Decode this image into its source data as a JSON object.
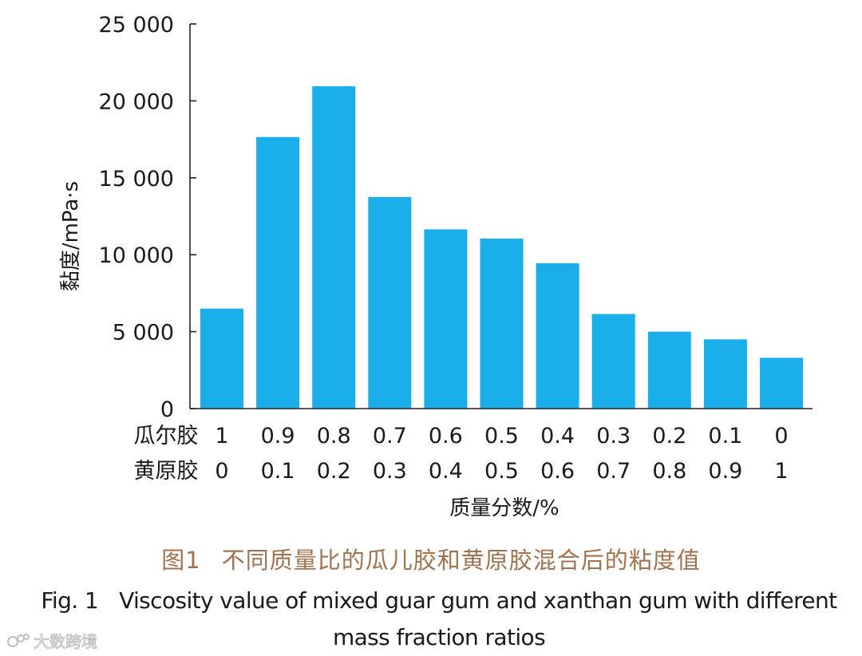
{
  "chart_data": {
    "type": "bar",
    "title": "",
    "ylabel": "黏度/mPa·s",
    "xlabel": "质量分数/%",
    "ylim": [
      0,
      25000
    ],
    "yticks": [
      0,
      5000,
      10000,
      15000,
      20000,
      25000
    ],
    "ytick_labels": [
      "0",
      "5 000",
      "10 000",
      "15 000",
      "20 000",
      "25 000"
    ],
    "row_labels": [
      "瓜尔胶",
      "黄原胶"
    ],
    "guar_gum_fractions": [
      "1",
      "0.9",
      "0.8",
      "0.7",
      "0.6",
      "0.5",
      "0.4",
      "0.3",
      "0.2",
      "0.1",
      "0"
    ],
    "xanthan_gum_fractions": [
      "0",
      "0.1",
      "0.2",
      "0.3",
      "0.4",
      "0.5",
      "0.6",
      "0.7",
      "0.8",
      "0.9",
      "1"
    ],
    "values": [
      6500,
      17650,
      20950,
      13750,
      11650,
      11050,
      9450,
      6150,
      5000,
      4500,
      3300
    ],
    "bar_color": "#1aaeea",
    "grid": false,
    "legend": "none"
  },
  "caption": {
    "cn_fig_no": "图1",
    "cn_text": "不同质量比的瓜儿胶和黄原胶混合后的粘度值",
    "en_fig_no": "Fig. 1",
    "en_line1": "Viscosity value of mixed guar gum and xanthan gum with different",
    "en_line2": "mass fraction ratios"
  },
  "watermark": {
    "text": "大数跨境",
    "icon": "logo-icon"
  }
}
